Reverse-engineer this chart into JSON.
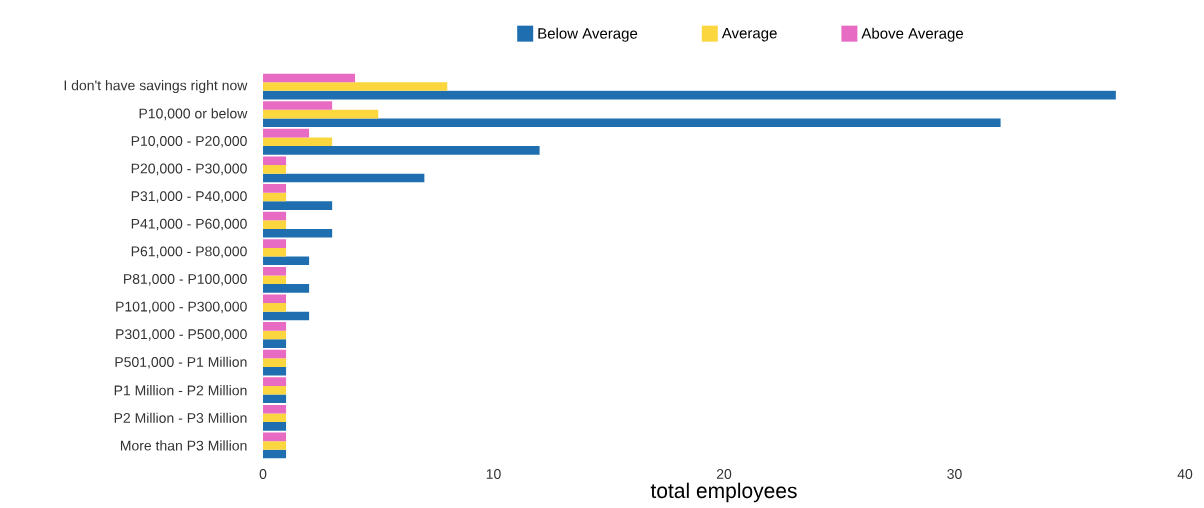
{
  "chart_data": {
    "type": "bar",
    "orientation": "horizontal",
    "xlabel": "total employees",
    "categories": [
      "I don't have savings right now",
      "P10,000 or below",
      "P10,000 - P20,000",
      "P20,000 - P30,000",
      "P31,000 - P40,000",
      "P41,000 - P60,000",
      "P61,000 - P80,000",
      "P81,000 - P100,000",
      "P101,000 - P300,000",
      "P301,000 - P500,000",
      "P501,000 - P1 Million",
      "P1 Million - P2 Million",
      "P2 Million - P3 Million",
      "More than P3 Million"
    ],
    "series": [
      {
        "name": "Below Average",
        "color": "#1f6fb0",
        "values": [
          37,
          32,
          12,
          7,
          3,
          3,
          2,
          2,
          2,
          1,
          1,
          1,
          1,
          1
        ]
      },
      {
        "name": "Average",
        "color": "#fbd63f",
        "values": [
          8,
          5,
          3,
          1,
          1,
          1,
          1,
          1,
          1,
          1,
          1,
          1,
          1,
          1
        ]
      },
      {
        "name": "Above Average",
        "color": "#e86bc3",
        "values": [
          4,
          3,
          2,
          1,
          1,
          1,
          1,
          1,
          1,
          1,
          1,
          1,
          1,
          1
        ]
      }
    ],
    "xlim": [
      0,
      40
    ],
    "xticks": [
      0,
      10,
      20,
      30,
      40
    ],
    "grid": false,
    "legend": "top"
  }
}
